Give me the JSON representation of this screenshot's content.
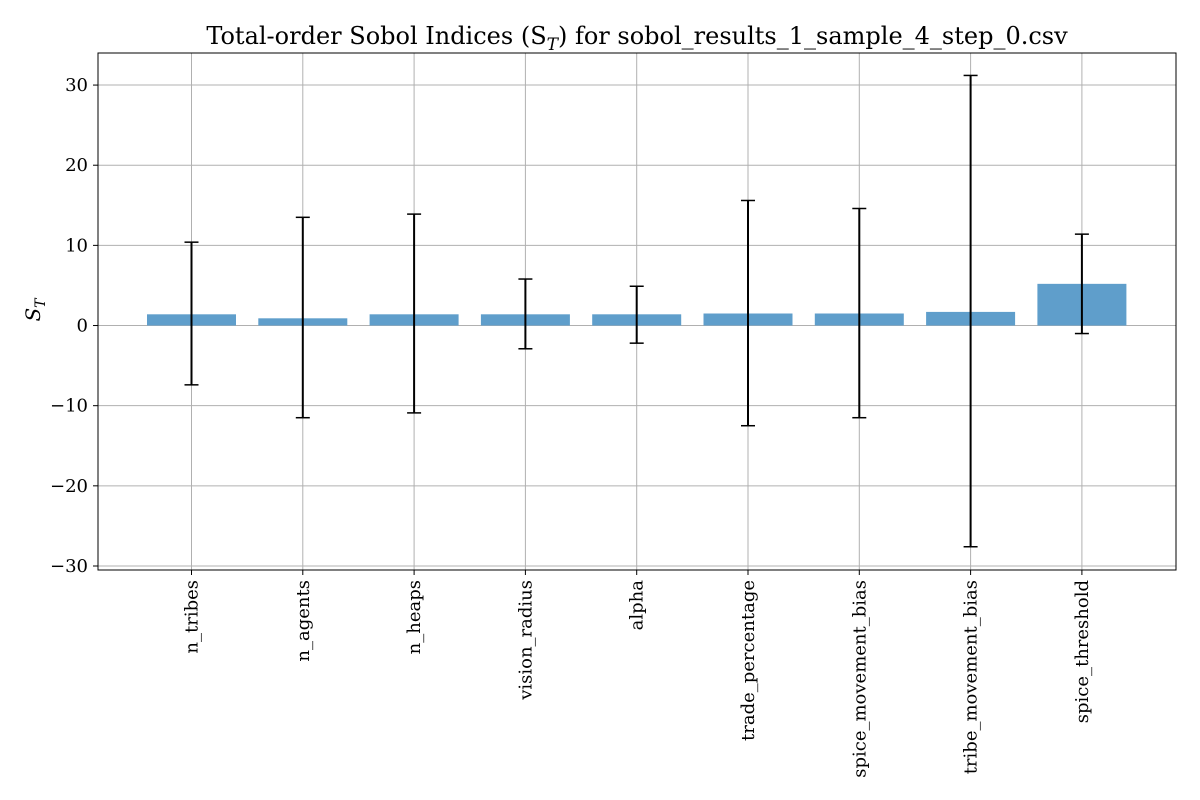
{
  "chart_data": {
    "type": "bar",
    "title": "Total-order Sobol Indices (S",
    "title_subscript": "T",
    "title_suffix": ") for sobol_results_1_sample_4_step_0.csv",
    "ylabel": "S",
    "ylabel_subscript": "T",
    "xlabel": "",
    "categories": [
      "n_tribes",
      "n_agents",
      "n_heaps",
      "vision_radius",
      "alpha",
      "trade_percentage",
      "spice_movement_bias",
      "tribe_movement_bias",
      "spice_threshold"
    ],
    "values": [
      1.4,
      0.9,
      1.4,
      1.4,
      1.4,
      1.5,
      1.5,
      1.7,
      5.2
    ],
    "error_low": [
      -7.4,
      -11.5,
      -10.9,
      -2.9,
      -2.2,
      -12.5,
      -11.5,
      -27.6,
      -1.0
    ],
    "error_high": [
      10.4,
      13.5,
      13.9,
      5.8,
      4.9,
      15.6,
      14.6,
      31.2,
      11.4
    ],
    "ylim": [
      -30.5,
      34.0
    ],
    "yticks": [
      -30,
      -20,
      -10,
      0,
      10,
      20,
      30
    ],
    "ytick_labels": [
      "−30",
      "−20",
      "−10",
      "0",
      "10",
      "20",
      "30"
    ],
    "grid": true,
    "colors": {
      "bar": "#5f9ecb",
      "error": "#000000",
      "grid": "#b0b0b0",
      "frame": "#000000"
    }
  }
}
